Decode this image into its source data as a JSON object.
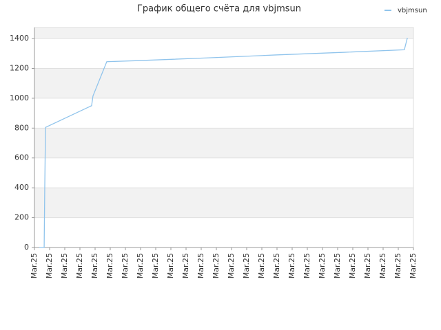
{
  "chart_data": {
    "type": "line",
    "title": "График общего счёта для vbjmsun",
    "x": [
      0.32,
      0.64,
      0.68,
      0.73,
      3.77,
      3.86,
      4.77,
      6.82,
      11.36,
      15.9,
      20.45,
      24.4,
      24.6
    ],
    "series": [
      {
        "name": "vbjmsun",
        "color": "#90c4ec",
        "values": [
          0,
          0,
          400,
          805,
          950,
          1015,
          1245,
          1252,
          1270,
          1290,
          1308,
          1325,
          1405
        ]
      }
    ],
    "xlim": [
      0,
      25
    ],
    "xticks": [
      {
        "value": 0,
        "label": "Mar.25"
      },
      {
        "value": 1,
        "label": "Mar.25"
      },
      {
        "value": 2,
        "label": "Mar.25"
      },
      {
        "value": 3,
        "label": "Mar.25"
      },
      {
        "value": 4,
        "label": "Mar.25"
      },
      {
        "value": 5,
        "label": "Mar.25"
      },
      {
        "value": 6,
        "label": "Mar.25"
      },
      {
        "value": 7,
        "label": "Mar.25"
      },
      {
        "value": 8,
        "label": "Mar.25"
      },
      {
        "value": 9,
        "label": "Mar.25"
      },
      {
        "value": 10,
        "label": "Mar.25"
      },
      {
        "value": 11,
        "label": "Mar.25"
      },
      {
        "value": 12,
        "label": "Mar.25"
      },
      {
        "value": 13,
        "label": "Mar.25"
      },
      {
        "value": 14,
        "label": "Mar.25"
      },
      {
        "value": 15,
        "label": "Mar.25"
      },
      {
        "value": 16,
        "label": "Mar.25"
      },
      {
        "value": 17,
        "label": "Mar.25"
      },
      {
        "value": 18,
        "label": "Mar.25"
      },
      {
        "value": 19,
        "label": "Mar.25"
      },
      {
        "value": 20,
        "label": "Mar.25"
      },
      {
        "value": 21,
        "label": "Mar.25"
      },
      {
        "value": 22,
        "label": "Mar.25"
      },
      {
        "value": 23,
        "label": "Mar.25"
      },
      {
        "value": 24,
        "label": "Mar.25"
      },
      {
        "value": 25,
        "label": "Mar.25"
      }
    ],
    "ylim": [
      0,
      1474
    ],
    "yticks": [
      0,
      200,
      400,
      600,
      800,
      1000,
      1200,
      1400
    ],
    "grid": true,
    "legend": "top-right"
  }
}
